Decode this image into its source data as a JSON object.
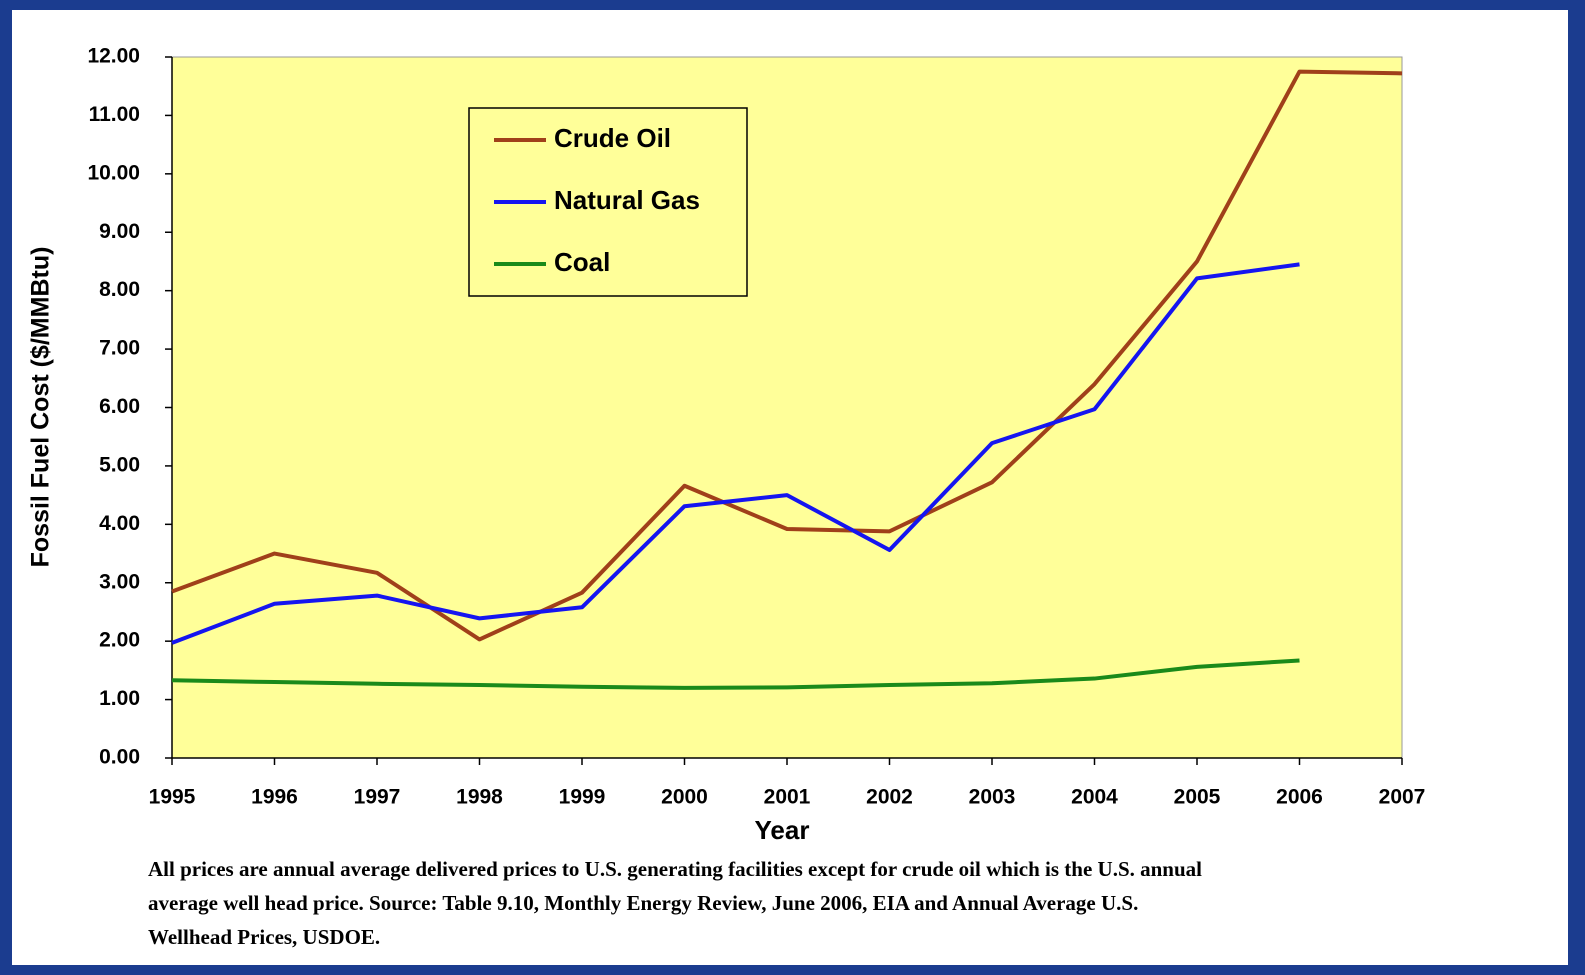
{
  "chart_data": {
    "type": "line",
    "x_label": "Year",
    "y_label": "Fossil Fuel Cost ($/MMBtu)",
    "x": [
      1995,
      1996,
      1997,
      1998,
      1999,
      2000,
      2001,
      2002,
      2003,
      2004,
      2005,
      2006,
      2007
    ],
    "series": [
      {
        "name": "Crude Oil",
        "color": "#a0401a",
        "values": [
          2.85,
          3.5,
          3.17,
          2.03,
          2.83,
          4.66,
          3.92,
          3.88,
          4.72,
          6.4,
          8.5,
          11.75,
          11.72
        ]
      },
      {
        "name": "Natural Gas",
        "color": "#1515f0",
        "values": [
          1.97,
          2.64,
          2.78,
          2.39,
          2.58,
          4.31,
          4.5,
          3.56,
          5.39,
          5.97,
          8.21,
          8.45,
          null
        ]
      },
      {
        "name": "Coal",
        "color": "#1a8a1a",
        "values": [
          1.33,
          1.3,
          1.27,
          1.25,
          1.22,
          1.2,
          1.21,
          1.25,
          1.28,
          1.36,
          1.56,
          1.67,
          null
        ]
      }
    ],
    "xlim": [
      1995,
      2007
    ],
    "xticks": [
      1995,
      1996,
      1997,
      1998,
      1999,
      2000,
      2001,
      2002,
      2003,
      2004,
      2005,
      2006,
      2007
    ],
    "ylim": [
      0,
      12
    ],
    "yticks": [
      {
        "value": 0,
        "label": "0.00"
      },
      {
        "value": 1,
        "label": "1.00"
      },
      {
        "value": 2,
        "label": "2.00"
      },
      {
        "value": 3,
        "label": "3.00"
      },
      {
        "value": 4,
        "label": "4.00"
      },
      {
        "value": 5,
        "label": "5.00"
      },
      {
        "value": 6,
        "label": "6.00"
      },
      {
        "value": 7,
        "label": "7.00"
      },
      {
        "value": 8,
        "label": "8.00"
      },
      {
        "value": 9,
        "label": "9.00"
      },
      {
        "value": 10,
        "label": "10.00"
      },
      {
        "value": 11,
        "label": "11.00"
      },
      {
        "value": 12,
        "label": "12.00"
      }
    ],
    "grid": false,
    "legend": "top-left",
    "plot_background": "#ffff99",
    "note": [
      "All prices are annual average delivered prices to U.S. generating facilities except for crude oil which is the U.S. annual",
      "average well head price. Source: Table 9.10, Monthly Energy Review, June 2006, EIA and Annual Average U.S.",
      "Wellhead Prices, USDOE."
    ]
  }
}
